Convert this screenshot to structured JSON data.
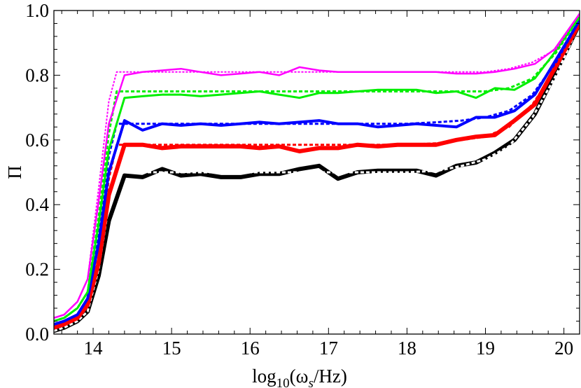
{
  "chart_data": {
    "type": "line",
    "xlabel_parts": {
      "base": "log",
      "sub1": "10",
      "open": "(ω",
      "sub2": "s",
      "close": "/Hz)"
    },
    "ylabel": "Π",
    "xlim": [
      13.5,
      20.2
    ],
    "ylim": [
      0.0,
      1.0
    ],
    "xticks": [
      "14",
      "15",
      "16",
      "17",
      "18",
      "19",
      "20"
    ],
    "yticks": [
      "0.0",
      "0.2",
      "0.4",
      "0.6",
      "0.8",
      "1.0"
    ],
    "grid": false,
    "series": [
      {
        "color": "#000000",
        "style": "solid",
        "width": 6,
        "x": [
          13.5,
          13.63,
          13.8,
          13.93,
          14.07,
          14.2,
          14.4,
          14.63,
          14.88,
          15.12,
          15.37,
          15.63,
          15.88,
          16.12,
          16.37,
          16.63,
          16.88,
          17.12,
          17.37,
          17.63,
          17.88,
          18.12,
          18.37,
          18.63,
          18.88,
          19.12,
          19.37,
          19.63,
          19.88,
          20.2
        ],
        "y": [
          0.01,
          0.02,
          0.04,
          0.07,
          0.18,
          0.35,
          0.49,
          0.485,
          0.51,
          0.49,
          0.495,
          0.485,
          0.485,
          0.495,
          0.495,
          0.51,
          0.52,
          0.48,
          0.5,
          0.505,
          0.505,
          0.505,
          0.49,
          0.52,
          0.53,
          0.56,
          0.6,
          0.68,
          0.8,
          0.96
        ]
      },
      {
        "color": "#ffffff",
        "style": "dotted",
        "width": 3,
        "x": [
          13.5,
          13.63,
          13.8,
          13.93,
          14.07,
          14.2,
          14.3,
          14.6,
          15,
          15.5,
          16,
          16.5,
          17,
          17.5,
          18,
          18.4,
          18.7,
          19,
          19.3,
          19.6,
          19.9,
          20.2
        ],
        "y": [
          0.01,
          0.02,
          0.04,
          0.07,
          0.2,
          0.4,
          0.5,
          0.5,
          0.5,
          0.5,
          0.5,
          0.5,
          0.5,
          0.5,
          0.5,
          0.505,
          0.52,
          0.54,
          0.58,
          0.67,
          0.8,
          0.96
        ]
      },
      {
        "color": "#ff0000",
        "style": "solid",
        "width": 6,
        "x": [
          13.5,
          13.63,
          13.8,
          13.93,
          14.07,
          14.2,
          14.4,
          14.63,
          14.88,
          15.12,
          15.37,
          15.63,
          15.88,
          16.12,
          16.37,
          16.63,
          16.88,
          17.12,
          17.37,
          17.63,
          17.88,
          18.12,
          18.37,
          18.63,
          18.88,
          19.12,
          19.37,
          19.63,
          19.88,
          20.2
        ],
        "y": [
          0.02,
          0.03,
          0.05,
          0.09,
          0.22,
          0.43,
          0.585,
          0.585,
          0.575,
          0.58,
          0.58,
          0.58,
          0.58,
          0.575,
          0.58,
          0.565,
          0.575,
          0.575,
          0.585,
          0.58,
          0.585,
          0.585,
          0.585,
          0.6,
          0.61,
          0.615,
          0.66,
          0.71,
          0.82,
          0.96
        ]
      },
      {
        "color": "#ff0000",
        "style": "dotted",
        "width": 3,
        "x": [
          13.5,
          13.63,
          13.8,
          13.93,
          14.07,
          14.2,
          14.3,
          14.6,
          15,
          15.5,
          16,
          16.5,
          17,
          17.5,
          18,
          18.4,
          18.7,
          19,
          19.3,
          19.6,
          19.9,
          20.2
        ],
        "y": [
          0.02,
          0.03,
          0.05,
          0.09,
          0.24,
          0.48,
          0.585,
          0.585,
          0.585,
          0.585,
          0.585,
          0.585,
          0.585,
          0.585,
          0.585,
          0.59,
          0.6,
          0.61,
          0.64,
          0.71,
          0.82,
          0.96
        ]
      },
      {
        "color": "#0000ff",
        "style": "solid",
        "width": 4,
        "x": [
          13.5,
          13.63,
          13.8,
          13.93,
          14.07,
          14.2,
          14.4,
          14.63,
          14.88,
          15.12,
          15.37,
          15.63,
          15.88,
          16.12,
          16.37,
          16.63,
          16.88,
          17.12,
          17.37,
          17.63,
          17.88,
          18.12,
          18.37,
          18.63,
          18.88,
          19.12,
          19.37,
          19.63,
          19.88,
          20.2
        ],
        "y": [
          0.03,
          0.04,
          0.06,
          0.11,
          0.28,
          0.5,
          0.66,
          0.63,
          0.65,
          0.645,
          0.65,
          0.645,
          0.65,
          0.655,
          0.65,
          0.655,
          0.66,
          0.65,
          0.65,
          0.64,
          0.645,
          0.65,
          0.645,
          0.64,
          0.67,
          0.67,
          0.69,
          0.74,
          0.84,
          0.97
        ]
      },
      {
        "color": "#0000ff",
        "style": "dotted",
        "width": 3,
        "x": [
          13.5,
          13.63,
          13.8,
          13.93,
          14.07,
          14.2,
          14.3,
          14.6,
          15,
          15.5,
          16,
          16.5,
          17,
          17.5,
          18,
          18.4,
          18.7,
          19,
          19.3,
          19.6,
          19.9,
          20.2
        ],
        "y": [
          0.03,
          0.04,
          0.06,
          0.11,
          0.3,
          0.55,
          0.65,
          0.65,
          0.65,
          0.65,
          0.65,
          0.65,
          0.65,
          0.65,
          0.65,
          0.655,
          0.66,
          0.67,
          0.69,
          0.74,
          0.84,
          0.97
        ]
      },
      {
        "color": "#00ee00",
        "style": "solid",
        "width": 3,
        "x": [
          13.5,
          13.63,
          13.8,
          13.93,
          14.07,
          14.2,
          14.4,
          14.63,
          14.88,
          15.12,
          15.37,
          15.63,
          15.88,
          16.12,
          16.37,
          16.63,
          16.88,
          17.12,
          17.37,
          17.63,
          17.88,
          18.12,
          18.37,
          18.63,
          18.88,
          19.12,
          19.37,
          19.63,
          19.88,
          20.2
        ],
        "y": [
          0.04,
          0.05,
          0.08,
          0.13,
          0.34,
          0.57,
          0.73,
          0.735,
          0.74,
          0.74,
          0.735,
          0.74,
          0.745,
          0.75,
          0.74,
          0.73,
          0.745,
          0.745,
          0.75,
          0.755,
          0.755,
          0.755,
          0.745,
          0.75,
          0.73,
          0.76,
          0.755,
          0.79,
          0.87,
          0.98
        ]
      },
      {
        "color": "#00ee00",
        "style": "dotted",
        "width": 3,
        "x": [
          13.5,
          13.63,
          13.8,
          13.93,
          14.07,
          14.2,
          14.3,
          14.6,
          15,
          15.5,
          16,
          16.5,
          17,
          17.5,
          18,
          18.4,
          18.7,
          19,
          19.3,
          19.6,
          19.9,
          20.2
        ],
        "y": [
          0.04,
          0.05,
          0.08,
          0.13,
          0.36,
          0.62,
          0.75,
          0.75,
          0.75,
          0.75,
          0.75,
          0.75,
          0.75,
          0.75,
          0.75,
          0.75,
          0.75,
          0.75,
          0.76,
          0.79,
          0.87,
          0.98
        ]
      },
      {
        "color": "#ff00ff",
        "style": "solid",
        "width": 2.5,
        "x": [
          13.5,
          13.63,
          13.8,
          13.93,
          14.07,
          14.2,
          14.4,
          14.63,
          14.88,
          15.12,
          15.37,
          15.63,
          15.88,
          16.12,
          16.37,
          16.63,
          16.88,
          17.12,
          17.37,
          17.63,
          17.88,
          18.12,
          18.37,
          18.63,
          18.88,
          19.12,
          19.37,
          19.63,
          19.88,
          20.2
        ],
        "y": [
          0.05,
          0.06,
          0.1,
          0.17,
          0.41,
          0.65,
          0.8,
          0.81,
          0.815,
          0.82,
          0.81,
          0.8,
          0.805,
          0.81,
          0.8,
          0.825,
          0.815,
          0.81,
          0.81,
          0.81,
          0.81,
          0.81,
          0.81,
          0.805,
          0.805,
          0.81,
          0.82,
          0.835,
          0.88,
          0.99
        ]
      },
      {
        "color": "#ff00ff",
        "style": "dotted",
        "width": 2,
        "x": [
          13.5,
          13.63,
          13.8,
          13.93,
          14.07,
          14.2,
          14.3,
          14.6,
          15,
          15.5,
          16,
          16.5,
          17,
          17.5,
          18,
          18.4,
          18.7,
          19,
          19.3,
          19.6,
          19.9,
          20.2
        ],
        "y": [
          0.05,
          0.06,
          0.1,
          0.17,
          0.45,
          0.72,
          0.81,
          0.81,
          0.81,
          0.81,
          0.81,
          0.81,
          0.81,
          0.81,
          0.81,
          0.81,
          0.81,
          0.81,
          0.82,
          0.84,
          0.88,
          0.99
        ]
      }
    ]
  }
}
